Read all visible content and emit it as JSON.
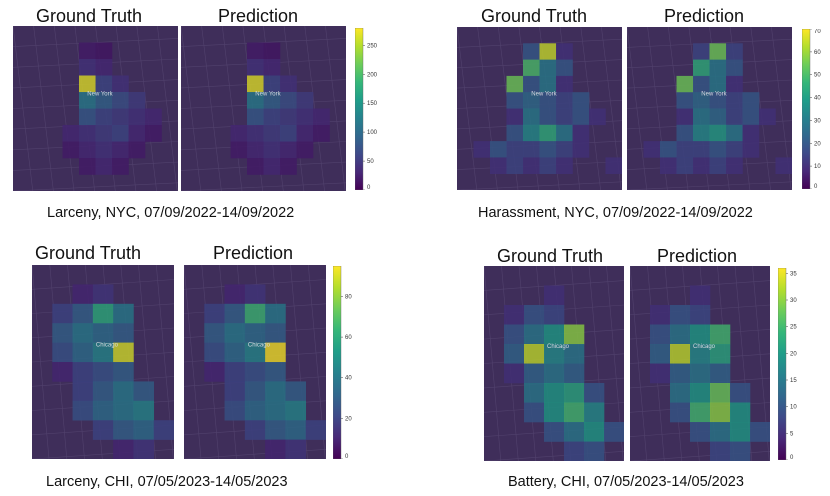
{
  "chart_data": [
    {
      "type": "heatmap",
      "headers": [
        "Ground Truth",
        "Prediction"
      ],
      "caption": "Larceny, NYC, 07/09/2022-14/09/2022",
      "city_label": "New York",
      "colorbar": {
        "min": 0,
        "max": 280,
        "ticks": [
          "0",
          "50",
          "100",
          "150",
          "200",
          "250"
        ],
        "tick_values": [
          0,
          50,
          100,
          150,
          200,
          250
        ]
      },
      "grid": {
        "cols": 10,
        "rows": 10,
        "ground_truth": [
          [
            0,
            0,
            0,
            0,
            0,
            0,
            0,
            0,
            0,
            0
          ],
          [
            0,
            0,
            0,
            0,
            20,
            15,
            0,
            0,
            0,
            0
          ],
          [
            0,
            0,
            0,
            0,
            40,
            30,
            0,
            0,
            0,
            0
          ],
          [
            0,
            0,
            0,
            0,
            270,
            60,
            40,
            0,
            0,
            0
          ],
          [
            0,
            0,
            0,
            0,
            120,
            90,
            70,
            50,
            0,
            0
          ],
          [
            0,
            0,
            0,
            0,
            80,
            60,
            50,
            40,
            30,
            0
          ],
          [
            0,
            0,
            0,
            30,
            40,
            50,
            60,
            30,
            20,
            0
          ],
          [
            0,
            0,
            0,
            20,
            30,
            40,
            30,
            20,
            0,
            0
          ],
          [
            0,
            0,
            0,
            0,
            20,
            30,
            20,
            0,
            0,
            0
          ],
          [
            0,
            0,
            0,
            0,
            0,
            0,
            0,
            0,
            0,
            0
          ]
        ],
        "prediction": [
          [
            0,
            0,
            0,
            0,
            0,
            0,
            0,
            0,
            0,
            0
          ],
          [
            0,
            0,
            0,
            0,
            20,
            15,
            0,
            0,
            0,
            0
          ],
          [
            0,
            0,
            0,
            0,
            40,
            30,
            0,
            0,
            0,
            0
          ],
          [
            0,
            0,
            0,
            0,
            270,
            60,
            40,
            0,
            0,
            0
          ],
          [
            0,
            0,
            0,
            0,
            120,
            90,
            70,
            50,
            0,
            0
          ],
          [
            0,
            0,
            0,
            0,
            80,
            60,
            50,
            40,
            30,
            0
          ],
          [
            0,
            0,
            0,
            30,
            40,
            50,
            60,
            30,
            20,
            0
          ],
          [
            0,
            0,
            0,
            20,
            30,
            40,
            30,
            20,
            0,
            0
          ],
          [
            0,
            0,
            0,
            0,
            20,
            30,
            20,
            0,
            0,
            0
          ],
          [
            0,
            0,
            0,
            0,
            0,
            0,
            0,
            0,
            0,
            0
          ]
        ]
      }
    },
    {
      "type": "heatmap",
      "headers": [
        "Ground Truth",
        "Prediction"
      ],
      "caption": "Harassment, NYC, 07/09/2022-14/09/2022",
      "city_label": "New York",
      "colorbar": {
        "min": 0,
        "max": 70,
        "ticks": [
          "0",
          "10",
          "20",
          "30",
          "40",
          "50",
          "60",
          "70"
        ],
        "tick_values": [
          0,
          10,
          20,
          30,
          40,
          50,
          60,
          70
        ]
      },
      "grid": {
        "cols": 10,
        "rows": 10,
        "ground_truth": [
          [
            0,
            0,
            0,
            0,
            0,
            0,
            0,
            0,
            0,
            0
          ],
          [
            0,
            0,
            0,
            0,
            20,
            65,
            10,
            0,
            0,
            0
          ],
          [
            0,
            0,
            0,
            0,
            50,
            30,
            20,
            0,
            0,
            0
          ],
          [
            0,
            0,
            0,
            55,
            20,
            30,
            10,
            0,
            0,
            0
          ],
          [
            0,
            0,
            0,
            20,
            25,
            20,
            15,
            20,
            0,
            0
          ],
          [
            0,
            0,
            0,
            10,
            30,
            20,
            15,
            20,
            10,
            0
          ],
          [
            0,
            0,
            0,
            20,
            35,
            45,
            30,
            10,
            0,
            0
          ],
          [
            0,
            10,
            20,
            15,
            15,
            20,
            15,
            10,
            0,
            0
          ],
          [
            0,
            0,
            10,
            15,
            10,
            15,
            10,
            0,
            0,
            10
          ],
          [
            0,
            0,
            0,
            0,
            0,
            0,
            0,
            0,
            0,
            0
          ]
        ],
        "prediction": [
          [
            0,
            0,
            0,
            0,
            0,
            0,
            0,
            0,
            0,
            0
          ],
          [
            0,
            0,
            0,
            0,
            15,
            55,
            15,
            0,
            0,
            0
          ],
          [
            0,
            0,
            0,
            0,
            45,
            30,
            20,
            0,
            0,
            0
          ],
          [
            0,
            0,
            0,
            55,
            20,
            30,
            10,
            0,
            0,
            0
          ],
          [
            0,
            0,
            0,
            20,
            25,
            20,
            15,
            20,
            0,
            0
          ],
          [
            0,
            0,
            0,
            10,
            30,
            25,
            15,
            20,
            10,
            0
          ],
          [
            0,
            0,
            0,
            20,
            35,
            40,
            30,
            10,
            0,
            0
          ],
          [
            0,
            10,
            20,
            15,
            15,
            20,
            15,
            10,
            0,
            0
          ],
          [
            0,
            0,
            10,
            15,
            10,
            15,
            10,
            0,
            0,
            10
          ],
          [
            0,
            0,
            0,
            0,
            0,
            0,
            0,
            0,
            0,
            0
          ]
        ]
      }
    },
    {
      "type": "heatmap",
      "headers": [
        "Ground Truth",
        "Prediction"
      ],
      "caption": "Larceny, CHI, 07/05/2023-14/05/2023",
      "city_label": "Chicago",
      "colorbar": {
        "min": 0,
        "max": 95,
        "ticks": [
          "0",
          "20",
          "40",
          "60",
          "80"
        ],
        "tick_values": [
          0,
          20,
          40,
          60,
          80
        ]
      },
      "grid": {
        "cols": 7,
        "rows": 10,
        "ground_truth": [
          [
            0,
            0,
            0,
            0,
            0,
            0,
            0
          ],
          [
            0,
            0,
            10,
            15,
            0,
            0,
            0
          ],
          [
            0,
            20,
            30,
            60,
            40,
            0,
            0
          ],
          [
            0,
            30,
            40,
            35,
            30,
            0,
            0
          ],
          [
            0,
            25,
            35,
            45,
            90,
            0,
            0
          ],
          [
            0,
            10,
            20,
            25,
            30,
            0,
            0
          ],
          [
            0,
            0,
            20,
            30,
            40,
            30,
            0
          ],
          [
            0,
            0,
            25,
            35,
            40,
            45,
            0
          ],
          [
            0,
            0,
            0,
            20,
            30,
            35,
            20
          ],
          [
            0,
            0,
            0,
            0,
            10,
            15,
            0
          ]
        ],
        "prediction": [
          [
            0,
            0,
            0,
            0,
            0,
            0,
            0
          ],
          [
            0,
            0,
            10,
            15,
            0,
            0,
            0
          ],
          [
            0,
            20,
            30,
            65,
            40,
            0,
            0
          ],
          [
            0,
            30,
            40,
            35,
            30,
            0,
            0
          ],
          [
            0,
            25,
            35,
            45,
            95,
            0,
            0
          ],
          [
            0,
            10,
            20,
            25,
            30,
            0,
            0
          ],
          [
            0,
            0,
            20,
            30,
            40,
            30,
            0
          ],
          [
            0,
            0,
            25,
            35,
            40,
            45,
            0
          ],
          [
            0,
            0,
            0,
            20,
            30,
            35,
            20
          ],
          [
            0,
            0,
            0,
            0,
            10,
            15,
            0
          ]
        ]
      }
    },
    {
      "type": "heatmap",
      "headers": [
        "Ground Truth",
        "Prediction"
      ],
      "caption": "Battery, CHI, 07/05/2023-14/05/2023",
      "city_label": "Chicago",
      "colorbar": {
        "min": 0,
        "max": 36,
        "ticks": [
          "0",
          "5",
          "10",
          "15",
          "20",
          "25",
          "30",
          "35"
        ],
        "tick_values": [
          0,
          5,
          10,
          15,
          20,
          25,
          30,
          35
        ]
      },
      "grid": {
        "cols": 7,
        "rows": 10,
        "ground_truth": [
          [
            0,
            0,
            0,
            0,
            0,
            0,
            0
          ],
          [
            0,
            0,
            0,
            5,
            0,
            0,
            0
          ],
          [
            0,
            5,
            10,
            8,
            0,
            0,
            0
          ],
          [
            0,
            10,
            15,
            20,
            30,
            0,
            0
          ],
          [
            0,
            12,
            33,
            18,
            15,
            0,
            0
          ],
          [
            0,
            5,
            12,
            15,
            12,
            0,
            0
          ],
          [
            0,
            0,
            15,
            20,
            22,
            10,
            0
          ],
          [
            0,
            0,
            10,
            20,
            25,
            18,
            0
          ],
          [
            0,
            0,
            0,
            10,
            15,
            20,
            10
          ],
          [
            0,
            0,
            0,
            0,
            8,
            10,
            0
          ]
        ],
        "prediction": [
          [
            0,
            0,
            0,
            0,
            0,
            0,
            0
          ],
          [
            0,
            0,
            0,
            5,
            0,
            0,
            0
          ],
          [
            0,
            5,
            10,
            8,
            0,
            0,
            0
          ],
          [
            0,
            10,
            15,
            20,
            25,
            0,
            0
          ],
          [
            0,
            12,
            33,
            18,
            22,
            0,
            0
          ],
          [
            0,
            5,
            12,
            15,
            12,
            0,
            0
          ],
          [
            0,
            0,
            15,
            20,
            28,
            10,
            0
          ],
          [
            0,
            0,
            10,
            25,
            30,
            20,
            0
          ],
          [
            0,
            0,
            0,
            10,
            15,
            20,
            10
          ],
          [
            0,
            0,
            0,
            0,
            8,
            10,
            0
          ]
        ]
      }
    }
  ]
}
